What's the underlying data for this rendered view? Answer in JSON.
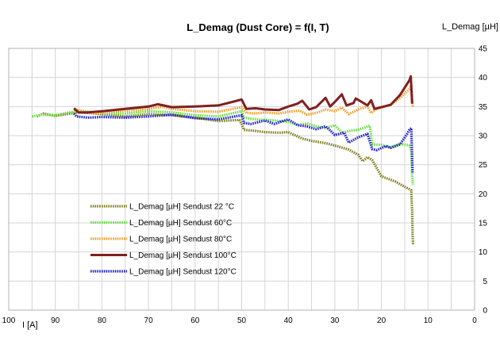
{
  "chart_data": {
    "type": "line",
    "title": "L_Demag (Dust Core) = f(I, T)",
    "xlabel": "I [A]",
    "ylabel": "L_Demag [µH]",
    "xlim": [
      100,
      0
    ],
    "ylim": [
      0,
      45
    ],
    "x_reversed": true,
    "grid": true,
    "legend_placement": "center-left",
    "xticks": [
      100,
      90,
      80,
      70,
      60,
      50,
      40,
      30,
      20,
      10,
      0
    ],
    "yticks": [
      0,
      5,
      10,
      15,
      20,
      25,
      30,
      35,
      40,
      45
    ],
    "series": [
      {
        "name": "L_Demag [µH] Sendust 22 °C",
        "color": "#808020",
        "style": "dotted",
        "x": [
          94,
          92.5,
          90,
          85,
          80,
          75,
          70,
          65,
          60,
          55,
          50.5,
          50,
          49.5,
          47,
          45,
          42,
          40,
          37,
          35,
          32,
          30,
          27,
          25,
          24,
          23,
          22,
          20,
          17,
          15,
          14,
          13.6,
          13.4,
          13.3,
          13.2
        ],
        "y": [
          33.3,
          33.8,
          33.4,
          34.0,
          33.7,
          33.3,
          33.7,
          33.5,
          33.1,
          32.5,
          32.7,
          32.0,
          31.0,
          30.8,
          30.6,
          30.5,
          30.6,
          29.5,
          29.1,
          28.7,
          28.3,
          27.6,
          26.7,
          25.6,
          26.3,
          25.8,
          23.0,
          22.1,
          21.2,
          20.8,
          20.6,
          17.0,
          13.0,
          11.2
        ]
      },
      {
        "name": "L_Demag [µH] Sendust 60°C",
        "color": "#66dd44",
        "style": "dotted",
        "x": [
          95,
          93,
          90,
          85,
          80,
          75,
          70,
          65,
          60,
          55,
          50,
          49.5,
          47,
          43,
          40,
          38,
          36,
          34,
          32,
          30,
          28.5,
          27,
          25,
          23.5,
          22.5,
          22,
          20,
          18,
          16,
          14,
          13.6,
          13.4,
          13.2
        ],
        "y": [
          33.3,
          33.6,
          33.5,
          34.3,
          33.9,
          33.8,
          34.2,
          34.0,
          33.5,
          33.3,
          34.2,
          33.1,
          32.8,
          32.6,
          32.4,
          31.8,
          32.1,
          31.6,
          31.3,
          31.8,
          30.5,
          30.8,
          31.0,
          31.4,
          31.7,
          28.5,
          28.4,
          28.0,
          28.6,
          28.3,
          27.5,
          23.0,
          21.5
        ]
      },
      {
        "name": "L_Demag [µH] Sendust 80°C",
        "color": "#f0a030",
        "style": "dotted",
        "x": [
          86,
          82,
          80,
          75,
          70,
          67,
          65,
          60,
          55,
          50,
          49,
          47,
          45,
          42,
          40,
          37.5,
          36,
          34,
          32,
          30,
          28.5,
          27,
          25,
          23,
          22.2,
          21,
          18,
          16,
          14,
          13.6,
          13.3
        ],
        "y": [
          34.5,
          33.8,
          34.0,
          34.3,
          34.6,
          35.0,
          34.6,
          34.2,
          34.1,
          34.9,
          33.9,
          33.8,
          34.0,
          33.8,
          34.1,
          34.3,
          33.6,
          33.9,
          34.5,
          34.2,
          34.8,
          33.7,
          34.5,
          35.0,
          33.9,
          34.6,
          35.3,
          36.5,
          38.0,
          38.6,
          35.0
        ]
      },
      {
        "name": "L_Demag [µH] Sendust 100°C",
        "color": "#802020",
        "style": "solid",
        "x": [
          86,
          85,
          83,
          80,
          75,
          70,
          68,
          65,
          60,
          55,
          50,
          49,
          47,
          45,
          42,
          40,
          38,
          37,
          35.5,
          34,
          32,
          31,
          30,
          28.5,
          27.5,
          26,
          25.5,
          23,
          22.2,
          21.5,
          18,
          16,
          14,
          13.7,
          13.4
        ],
        "y": [
          34.7,
          34.0,
          34.0,
          34.2,
          34.6,
          35.0,
          35.4,
          34.9,
          35.0,
          35.2,
          36.2,
          34.6,
          34.7,
          34.5,
          34.4,
          35.0,
          35.5,
          36.0,
          34.5,
          34.9,
          36.5,
          35.0,
          35.8,
          37.1,
          35.2,
          35.6,
          36.4,
          35.2,
          36.1,
          34.6,
          35.3,
          37.0,
          39.5,
          40.2,
          35.5
        ]
      },
      {
        "name": "L_Demag [µH] Sendust 120°C",
        "color": "#2222cc",
        "style": "dotted",
        "x": [
          86,
          85.5,
          83,
          80,
          75,
          70,
          65,
          60,
          55,
          50,
          49.5,
          48,
          45,
          43,
          40,
          38,
          36,
          34,
          32,
          31,
          30,
          29,
          28,
          27,
          25,
          24,
          23,
          22,
          21,
          19,
          18,
          16,
          14.5,
          14,
          13.6,
          13.3
        ],
        "y": [
          33.8,
          33.3,
          33.1,
          33.2,
          33.1,
          33.3,
          33.6,
          33.0,
          32.8,
          33.5,
          32.2,
          32.0,
          32.6,
          32.0,
          32.8,
          31.8,
          31.6,
          31.1,
          31.6,
          30.9,
          30.1,
          30.3,
          30.5,
          28.8,
          29.7,
          30.0,
          30.3,
          27.7,
          27.5,
          28.2,
          27.9,
          28.5,
          30.3,
          31.0,
          31.3,
          23.5
        ]
      }
    ]
  }
}
